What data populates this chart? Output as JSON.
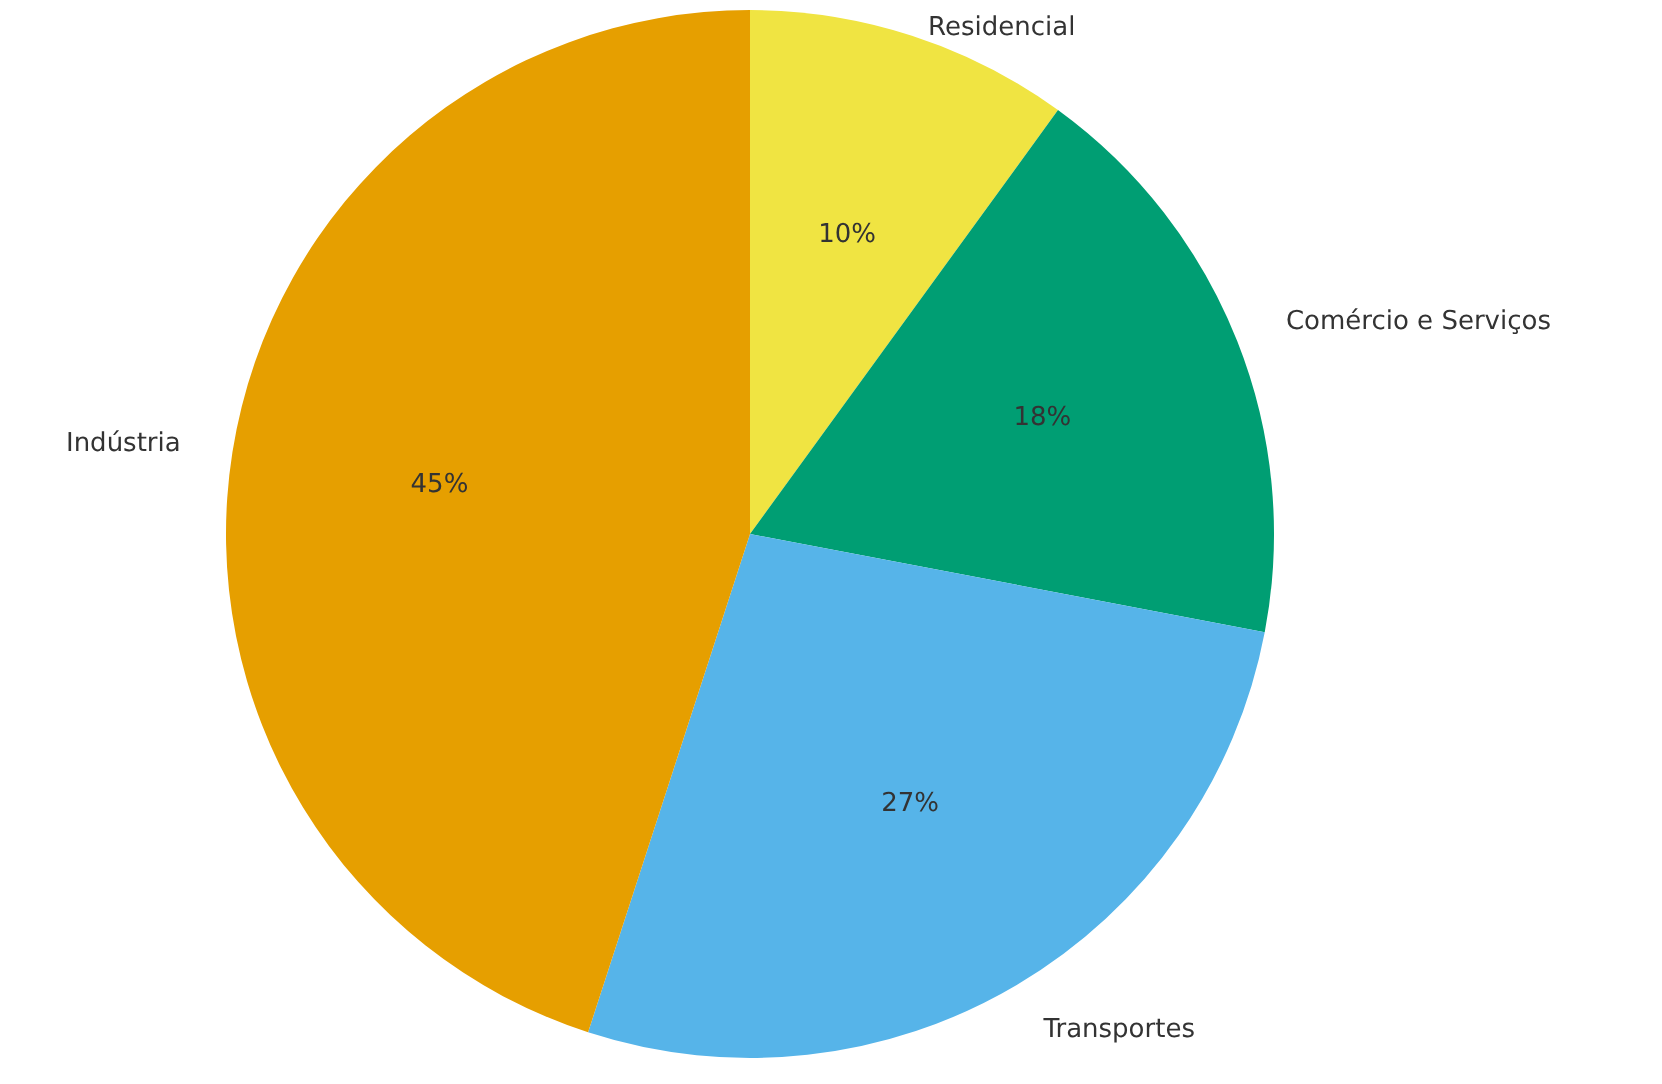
{
  "chart_data": {
    "type": "pie",
    "categories": [
      "Residencial",
      "Comércio e Serviços",
      "Transportes",
      "Indústria"
    ],
    "values": [
      10,
      18,
      27,
      45
    ],
    "value_labels": [
      "10%",
      "18%",
      "27%",
      "45%"
    ],
    "colors": [
      "#f0e442",
      "#009e73",
      "#56b4e9",
      "#e69f00"
    ],
    "legend": false
  }
}
